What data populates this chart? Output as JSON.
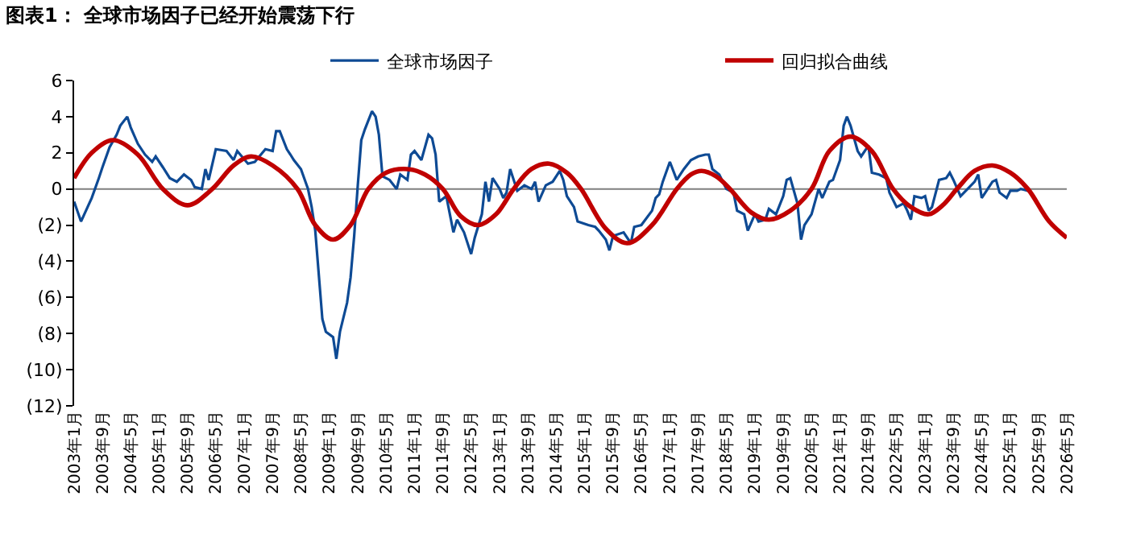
{
  "chart_data": {
    "type": "line",
    "title": "图表1： 全球市场因子已经开始震荡下行",
    "xlim": [
      "2003-01",
      "2026-05"
    ],
    "xticks": [
      {
        "value": "2003-01",
        "label": "2003年1月"
      },
      {
        "value": "2003-09",
        "label": "2003年9月"
      },
      {
        "value": "2004-05",
        "label": "2004年5月"
      },
      {
        "value": "2005-01",
        "label": "2005年1月"
      },
      {
        "value": "2005-09",
        "label": "2005年9月"
      },
      {
        "value": "2006-05",
        "label": "2006年5月"
      },
      {
        "value": "2007-01",
        "label": "2007年1月"
      },
      {
        "value": "2007-09",
        "label": "2007年9月"
      },
      {
        "value": "2008-05",
        "label": "2008年5月"
      },
      {
        "value": "2009-01",
        "label": "2009年1月"
      },
      {
        "value": "2009-09",
        "label": "2009年9月"
      },
      {
        "value": "2010-05",
        "label": "2010年5月"
      },
      {
        "value": "2011-01",
        "label": "2011年1月"
      },
      {
        "value": "2011-09",
        "label": "2011年9月"
      },
      {
        "value": "2012-05",
        "label": "2012年5月"
      },
      {
        "value": "2013-01",
        "label": "2013年1月"
      },
      {
        "value": "2013-09",
        "label": "2013年9月"
      },
      {
        "value": "2014-05",
        "label": "2014年5月"
      },
      {
        "value": "2015-01",
        "label": "2015年1月"
      },
      {
        "value": "2015-09",
        "label": "2015年9月"
      },
      {
        "value": "2016-05",
        "label": "2016年5月"
      },
      {
        "value": "2017-01",
        "label": "2017年1月"
      },
      {
        "value": "2017-09",
        "label": "2017年9月"
      },
      {
        "value": "2018-05",
        "label": "2018年5月"
      },
      {
        "value": "2019-01",
        "label": "2019年1月"
      },
      {
        "value": "2019-09",
        "label": "2019年9月"
      },
      {
        "value": "2020-05",
        "label": "2020年5月"
      },
      {
        "value": "2021-01",
        "label": "2021年1月"
      },
      {
        "value": "2021-09",
        "label": "2021年9月"
      },
      {
        "value": "2022-05",
        "label": "2022年5月"
      },
      {
        "value": "2023-01",
        "label": "2023年1月"
      },
      {
        "value": "2023-09",
        "label": "2023年9月"
      },
      {
        "value": "2024-05",
        "label": "2024年5月"
      },
      {
        "value": "2025-01",
        "label": "2025年1月"
      },
      {
        "value": "2025-09",
        "label": "2025年9月"
      },
      {
        "value": "2026-05",
        "label": "2026年5月"
      }
    ],
    "ylim": [
      -12,
      6
    ],
    "yticks": [
      {
        "value": -12,
        "label": "(12)"
      },
      {
        "value": -10,
        "label": "(10)"
      },
      {
        "value": -8,
        "label": "(8)"
      },
      {
        "value": -6,
        "label": "(6)"
      },
      {
        "value": -4,
        "label": "(4)"
      },
      {
        "value": -2,
        "label": "(2)"
      },
      0,
      2,
      4,
      6
    ],
    "ref_lines": [
      {
        "axis": "y",
        "value": 0,
        "color": "#7f7f7f"
      }
    ],
    "grid": false,
    "legend": "top",
    "marker": "none",
    "line_style": "solid",
    "series": [
      {
        "name": "全球市场因子",
        "color": "#0e4a94",
        "x": [
          "2003-01",
          "2003-03",
          "2003-06",
          "2003-08",
          "2003-09",
          "2003-11",
          "2004-01",
          "2004-02",
          "2004-04",
          "2004-05",
          "2004-07",
          "2004-09",
          "2004-11",
          "2004-12",
          "2005-02",
          "2005-04",
          "2005-06",
          "2005-08",
          "2005-10",
          "2005-11",
          "2006-01",
          "2006-02",
          "2006-03",
          "2006-05",
          "2006-08",
          "2006-10",
          "2006-11",
          "2007-02",
          "2007-04",
          "2007-07",
          "2007-09",
          "2007-10",
          "2007-11",
          "2008-01",
          "2008-02",
          "2008-03",
          "2008-05",
          "2008-07",
          "2008-08",
          "2008-09",
          "2008-11",
          "2008-12",
          "2009-02",
          "2009-03",
          "2009-04",
          "2009-06",
          "2009-07",
          "2009-08",
          "2009-09",
          "2009-10",
          "2009-11",
          "2010-01",
          "2010-02",
          "2010-03",
          "2010-04",
          "2010-06",
          "2010-08",
          "2010-09",
          "2010-11",
          "2010-12",
          "2011-01",
          "2011-03",
          "2011-05",
          "2011-06",
          "2011-07",
          "2011-08",
          "2011-10",
          "2011-12",
          "2012-01",
          "2012-03",
          "2012-05",
          "2012-06",
          "2012-08",
          "2012-09",
          "2012-10",
          "2012-11",
          "2013-01",
          "2013-02",
          "2013-03",
          "2013-04",
          "2013-06",
          "2013-08",
          "2013-10",
          "2013-11",
          "2013-12",
          "2014-02",
          "2014-04",
          "2014-06",
          "2014-07",
          "2014-08",
          "2014-10",
          "2014-11",
          "2015-02",
          "2015-04",
          "2015-05",
          "2015-07",
          "2015-08",
          "2015-09",
          "2015-12",
          "2016-02",
          "2016-03",
          "2016-05",
          "2016-08",
          "2016-09",
          "2016-10",
          "2016-11",
          "2017-01",
          "2017-03",
          "2017-05",
          "2017-07",
          "2017-09",
          "2017-11",
          "2017-12",
          "2018-01",
          "2018-03",
          "2018-05",
          "2018-07",
          "2018-08",
          "2018-10",
          "2018-11",
          "2019-01",
          "2019-02",
          "2019-04",
          "2019-05",
          "2019-07",
          "2019-09",
          "2019-10",
          "2019-11",
          "2020-01",
          "2020-02",
          "2020-03",
          "2020-05",
          "2020-07",
          "2020-08",
          "2020-10",
          "2020-11",
          "2021-01",
          "2021-02",
          "2021-03",
          "2021-04",
          "2021-06",
          "2021-07",
          "2021-09",
          "2021-10",
          "2021-12",
          "2022-02",
          "2022-03",
          "2022-05",
          "2022-07",
          "2022-08",
          "2022-09",
          "2022-10",
          "2022-12",
          "2023-01",
          "2023-02",
          "2023-03",
          "2023-05",
          "2023-07",
          "2023-08",
          "2023-09",
          "2023-11",
          "2024-01",
          "2024-03",
          "2024-04",
          "2024-05",
          "2024-06",
          "2024-08",
          "2024-09",
          "2024-10",
          "2024-12",
          "2025-01",
          "2025-03",
          "2025-04",
          "2025-06"
        ],
        "values": [
          -0.7,
          -1.8,
          -0.5,
          0.6,
          1.2,
          2.3,
          3.0,
          3.5,
          4.0,
          3.4,
          2.5,
          1.9,
          1.5,
          1.8,
          1.2,
          0.6,
          0.4,
          0.8,
          0.5,
          0.1,
          0,
          1.1,
          0.5,
          2.2,
          2.1,
          1.6,
          2.1,
          1.4,
          1.5,
          2.2,
          2.1,
          3.2,
          3.2,
          2.2,
          1.9,
          1.6,
          1.1,
          0,
          -1.0,
          -2.3,
          -7.2,
          -7.9,
          -8.2,
          -9.4,
          -7.9,
          -6.3,
          -4.9,
          -2.6,
          0.2,
          2.7,
          3.3,
          4.3,
          4.0,
          3.0,
          0.7,
          0.5,
          0,
          0.8,
          0.5,
          1.9,
          2.1,
          1.6,
          3.0,
          2.8,
          1.9,
          -0.7,
          -0.4,
          -2.4,
          -1.7,
          -2.4,
          -3.6,
          -2.7,
          -1.4,
          0.4,
          -0.7,
          0.6,
          0,
          -0.5,
          -0.2,
          1.1,
          -0.1,
          0.2,
          0,
          0.4,
          -0.7,
          0.2,
          0.4,
          1.0,
          0.5,
          -0.4,
          -1.0,
          -1.8,
          -2.0,
          -2.1,
          -2.3,
          -2.8,
          -3.4,
          -2.6,
          -2.4,
          -3.0,
          -2.1,
          -2.0,
          -1.2,
          -0.5,
          -0.3,
          0.4,
          1.5,
          0.5,
          1.1,
          1.6,
          1.8,
          1.9,
          1.9,
          1.1,
          0.8,
          0,
          -0.2,
          -1.2,
          -1.4,
          -2.3,
          -1.4,
          -1.8,
          -1.7,
          -1.1,
          -1.4,
          -0.4,
          0.5,
          0.6,
          -0.8,
          -2.8,
          -2.0,
          -1.4,
          0,
          -0.5,
          0.4,
          0.5,
          1.6,
          3.5,
          4.0,
          3.5,
          2.1,
          1.8,
          2.4,
          0.9,
          0.8,
          0.6,
          -0.2,
          -1.0,
          -0.8,
          -1.2,
          -1.7,
          -0.4,
          -0.5,
          -0.4,
          -1.2,
          -1.0,
          0.5,
          0.6,
          0.9,
          0.5,
          -0.4,
          0,
          0.4,
          0.8,
          -0.5,
          -0.2,
          0.4,
          0.5,
          -0.2,
          -0.5,
          -0.1,
          -0.1,
          0,
          -0.1
        ]
      },
      {
        "name": "回归拟合曲线",
        "color": "#c00000",
        "x": [
          "2003-01",
          "2003-06",
          "2003-12",
          "2004-07",
          "2005-02",
          "2005-09",
          "2006-04",
          "2006-10",
          "2007-03",
          "2007-09",
          "2008-04",
          "2008-09",
          "2009-02",
          "2009-07",
          "2009-12",
          "2010-05",
          "2010-11",
          "2011-04",
          "2011-09",
          "2012-02",
          "2012-07",
          "2012-12",
          "2013-05",
          "2013-10",
          "2014-03",
          "2014-08",
          "2014-12",
          "2015-07",
          "2016-01",
          "2016-08",
          "2017-03",
          "2017-07",
          "2017-10",
          "2018-02",
          "2018-06",
          "2018-12",
          "2019-05",
          "2019-11",
          "2020-05",
          "2020-10",
          "2021-04",
          "2021-10",
          "2022-04",
          "2022-09",
          "2023-02",
          "2023-06",
          "2023-10",
          "2024-03",
          "2024-08",
          "2025-01",
          "2025-06",
          "2025-12",
          "2026-05"
        ],
        "values": [
          0.6,
          2.0,
          2.7,
          1.9,
          0,
          -0.9,
          0,
          1.3,
          1.8,
          1.3,
          0,
          -2.0,
          -2.8,
          -2.0,
          0,
          0.9,
          1.1,
          0.8,
          0,
          -1.5,
          -2.0,
          -1.4,
          0,
          1.1,
          1.4,
          0.9,
          0,
          -2.2,
          -3.0,
          -2.0,
          0,
          0.8,
          1.0,
          0.7,
          0,
          -1.3,
          -1.7,
          -1.2,
          0,
          2.1,
          2.9,
          2.1,
          0,
          -1.0,
          -1.4,
          -0.9,
          0,
          1.0,
          1.3,
          0.9,
          0,
          -1.8,
          -2.7
        ]
      }
    ]
  }
}
